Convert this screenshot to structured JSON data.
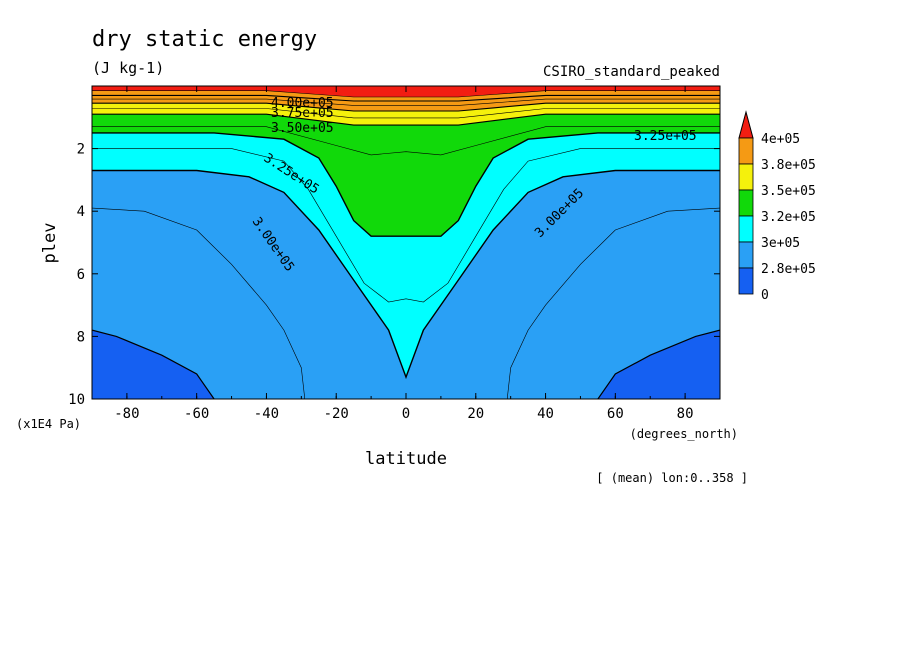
{
  "chart_data": {
    "type": "heatmap",
    "title": "dry static energy",
    "units": "(J kg-1)",
    "model": "CSIRO_standard_peaked",
    "xlabel": "latitude",
    "x_units": "(degrees_north)",
    "ylabel": "plev",
    "y_units": "(x1E4 Pa)",
    "footnote": "[ (mean) lon:0..358 ]",
    "xlim": [
      -90,
      90
    ],
    "ylim": [
      10,
      0
    ],
    "x_ticks": [
      "-80",
      "-60",
      "-40",
      "-20",
      "0",
      "20",
      "40",
      "60",
      "80"
    ],
    "y_ticks": [
      "2",
      "4",
      "6",
      "8",
      "10"
    ],
    "colorbar": {
      "labels": [
        "4e+05",
        "3.8e+05",
        "3.5e+05",
        "3.2e+05",
        "3e+05",
        "2.8e+05",
        "0"
      ],
      "colors": [
        "#f21d12",
        "#f59a14",
        "#f5f10c",
        "#11d90a",
        "#00ffff",
        "#2aa0f5",
        "#1560f2"
      ],
      "extend": "top"
    },
    "contour_labels": [
      "4.00e+05",
      "3.75e+05",
      "3.50e+05",
      "3.25e+05",
      "3.25e+05",
      "3.00e+05",
      "3.00e+05"
    ],
    "fields": [
      {
        "name": "2.8e+05 region",
        "color": "#1560f2",
        "lat": [
          -90,
          -83,
          -70,
          -60,
          -55
        ],
        "plev": [
          7.8,
          8.0,
          8.6,
          9.2,
          10
        ]
      },
      {
        "name": "2.8e+05 region",
        "color": "#1560f2",
        "lat": [
          55,
          60,
          70,
          83,
          90
        ],
        "plev": [
          10,
          9.2,
          8.6,
          8.0,
          7.8
        ]
      },
      {
        "name": "3.0e+05 boundary",
        "lat": [
          -90,
          -60,
          -45,
          -35,
          -25,
          -15,
          -5,
          0,
          5,
          15,
          25,
          35,
          45,
          60,
          90
        ],
        "plev": [
          2.7,
          2.7,
          2.9,
          3.4,
          4.6,
          6.2,
          7.8,
          9.3,
          7.8,
          6.2,
          4.6,
          3.4,
          2.9,
          2.7,
          2.7
        ]
      },
      {
        "name": "3.25e+05 boundary",
        "lat": [
          -90,
          -55,
          -35,
          -25,
          -20,
          -15,
          -10,
          0,
          10,
          15,
          20,
          25,
          35,
          55,
          90
        ],
        "plev": [
          1.5,
          1.5,
          1.7,
          2.3,
          3.2,
          4.3,
          4.8,
          4.8,
          4.8,
          4.3,
          3.2,
          2.3,
          1.7,
          1.5,
          1.5
        ]
      }
    ]
  }
}
